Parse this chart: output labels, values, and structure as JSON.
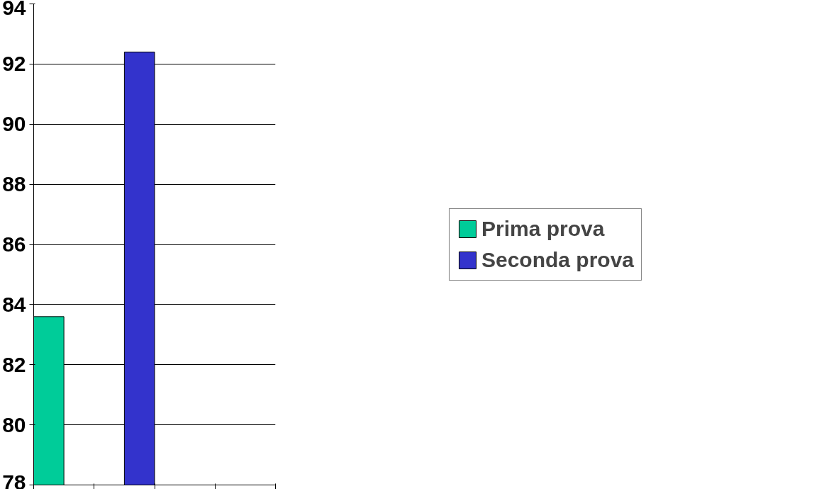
{
  "chart_data": {
    "type": "bar",
    "categories": [
      null,
      null,
      null,
      null
    ],
    "series": [
      {
        "name": "Prima prova",
        "color": "#00cc99",
        "values": [
          83.6,
          null,
          null,
          null
        ]
      },
      {
        "name": "Seconda prova",
        "color": "#3333cc",
        "values": [
          null,
          92.4,
          null,
          null
        ]
      }
    ],
    "ylim": [
      78,
      94
    ],
    "yticks": [
      78,
      80,
      82,
      84,
      86,
      88,
      90,
      92,
      94
    ],
    "grid": "y",
    "legend": "right"
  }
}
